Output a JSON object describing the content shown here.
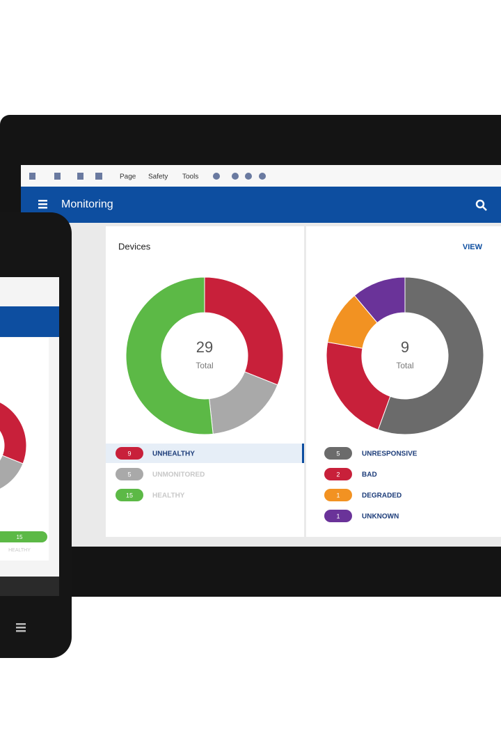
{
  "toolbar": {
    "items": [
      "Page",
      "Safety",
      "Tools"
    ]
  },
  "header": {
    "title": "Monitoring"
  },
  "panels": [
    {
      "title": "Devices",
      "total": 29,
      "center_label": "Total",
      "highlight": 0,
      "segments": [
        {
          "name": "UNHEALTHY",
          "value": 9,
          "color": "#c8203a"
        },
        {
          "name": "UNMONITORED",
          "value": 5,
          "color": "#a9a9a9"
        },
        {
          "name": "HEALTHY",
          "value": 15,
          "color": "#5cb946"
        }
      ]
    },
    {
      "link": "VIEW",
      "total": 9,
      "center_label": "Total",
      "segments": [
        {
          "name": "UNRESPONSIVE",
          "value": 5,
          "color": "#6b6b6b"
        },
        {
          "name": "BAD",
          "value": 2,
          "color": "#c8203a"
        },
        {
          "name": "DEGRADED",
          "value": 1,
          "color": "#f29222"
        },
        {
          "name": "UNKNOWN",
          "value": 1,
          "color": "#6a3399"
        }
      ]
    }
  ]
}
